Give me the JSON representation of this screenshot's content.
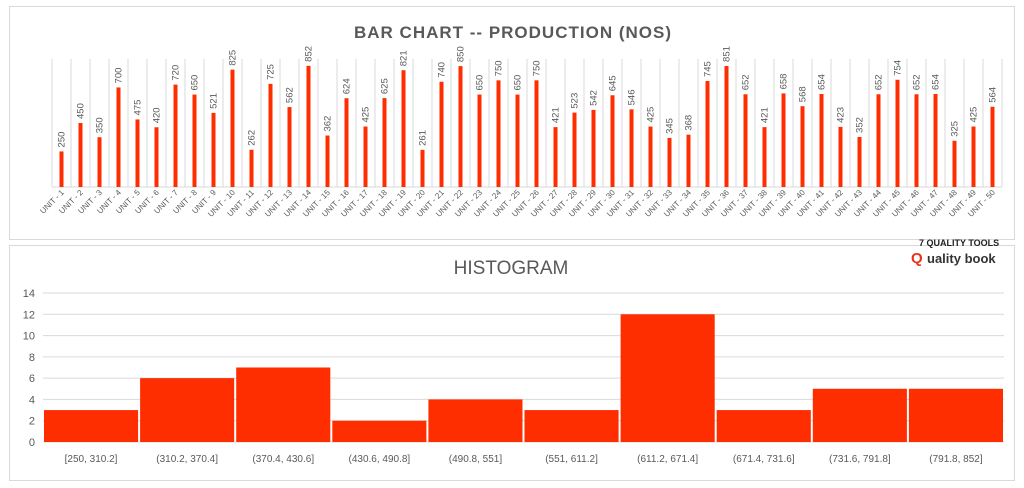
{
  "brand": {
    "top": "7 QUALITY TOOLS",
    "mark": "Q",
    "text": "uality book"
  },
  "colors": {
    "bar": "#ff2e00",
    "grid": "#d9d9d9",
    "text": "#595959"
  },
  "chart_data": [
    {
      "type": "bar",
      "title": "BAR CHART -- PRODUCTION (NOS)",
      "xlabel": "",
      "ylabel": "",
      "ylim": [
        0,
        900
      ],
      "categories": [
        "UNIT - 1",
        "UNIT - 2",
        "UNIT - 3",
        "UNIT - 4",
        "UNIT - 5",
        "UNIT - 6",
        "UNIT - 7",
        "UNIT - 8",
        "UNIT - 9",
        "UNIT - 10",
        "UNIT - 11",
        "UNIT - 12",
        "UNIT - 13",
        "UNIT - 14",
        "UNIT - 15",
        "UNIT - 16",
        "UNIT - 17",
        "UNIT - 18",
        "UNIT - 19",
        "UNIT - 20",
        "UNIT - 21",
        "UNIT - 22",
        "UNIT - 23",
        "UNIT - 24",
        "UNIT - 25",
        "UNIT - 26",
        "UNIT - 27",
        "UNIT - 28",
        "UNIT - 29",
        "UNIT - 30",
        "UNIT - 31",
        "UNIT - 32",
        "UNIT - 33",
        "UNIT - 34",
        "UNIT - 35",
        "UNIT - 36",
        "UNIT - 37",
        "UNIT - 38",
        "UNIT - 39",
        "UNIT - 40",
        "UNIT - 41",
        "UNIT - 42",
        "UNIT - 43",
        "UNIT - 44",
        "UNIT - 45",
        "UNIT - 46",
        "UNIT - 47",
        "UNIT - 48",
        "UNIT - 49",
        "UNIT - 50"
      ],
      "values": [
        250,
        450,
        350,
        700,
        475,
        420,
        720,
        650,
        521,
        825,
        262,
        725,
        562,
        852,
        362,
        624,
        425,
        625,
        821,
        261,
        740,
        850,
        650,
        750,
        650,
        750,
        421,
        523,
        542,
        645,
        546,
        425,
        345,
        368,
        745,
        851,
        652,
        421,
        658,
        568,
        654,
        423,
        352,
        652,
        754,
        652,
        654,
        325,
        425,
        564
      ],
      "data_labels": true,
      "grid": "vertical"
    },
    {
      "type": "bar",
      "title": "HISTOGRAM",
      "xlabel": "",
      "ylabel": "",
      "ylim": [
        0,
        14
      ],
      "yticks": [
        "0",
        "2",
        "4",
        "6",
        "8",
        "10",
        "12",
        "14"
      ],
      "categories": [
        "[250, 310.2]",
        "(310.2, 370.4]",
        "(370.4, 430.6]",
        "(430.6, 490.8]",
        "(490.8, 551]",
        "(551, 611.2]",
        "(611.2, 671.4]",
        "(671.4, 731.6]",
        "(731.6, 791.8]",
        "(791.8, 852]"
      ],
      "values": [
        3,
        6,
        7,
        2,
        4,
        3,
        12,
        3,
        5,
        5
      ],
      "grid": "horizontal"
    }
  ]
}
